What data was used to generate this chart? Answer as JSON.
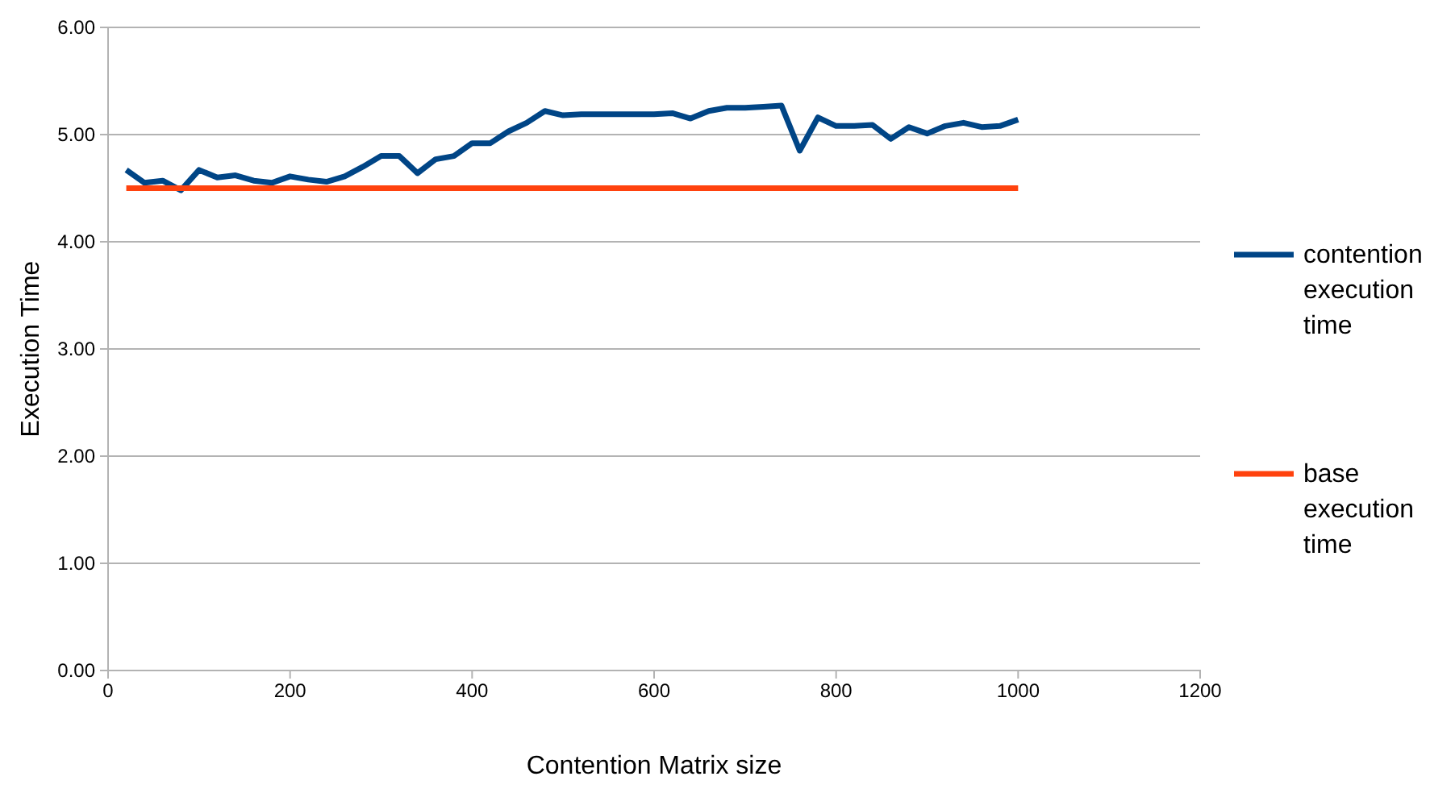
{
  "chart_data": {
    "type": "line",
    "xlabel": "Contention Matrix size",
    "ylabel": "Execution Time",
    "x": [
      20,
      40,
      60,
      80,
      100,
      120,
      140,
      160,
      180,
      200,
      220,
      240,
      260,
      280,
      300,
      320,
      340,
      360,
      380,
      400,
      420,
      440,
      460,
      480,
      500,
      520,
      540,
      560,
      580,
      600,
      620,
      640,
      660,
      680,
      700,
      720,
      740,
      760,
      780,
      800,
      820,
      840,
      860,
      880,
      900,
      920,
      940,
      960,
      980,
      1000
    ],
    "series": [
      {
        "name": "contention execution time",
        "color": "#004586",
        "values": [
          4.67,
          4.55,
          4.57,
          4.48,
          4.67,
          4.6,
          4.62,
          4.57,
          4.55,
          4.61,
          4.58,
          4.56,
          4.61,
          4.7,
          4.8,
          4.8,
          4.64,
          4.77,
          4.8,
          4.92,
          4.92,
          5.03,
          5.11,
          5.22,
          5.18,
          5.19,
          5.19,
          5.19,
          5.19,
          5.19,
          5.2,
          5.15,
          5.22,
          5.25,
          5.25,
          5.26,
          5.27,
          4.85,
          5.16,
          5.08,
          5.08,
          5.09,
          4.96,
          5.07,
          5.01,
          5.08,
          5.11,
          5.07,
          5.08,
          5.14
        ]
      },
      {
        "name": "base execution time",
        "color": "#ff420e",
        "values": [
          4.5,
          4.5,
          4.5,
          4.5,
          4.5,
          4.5,
          4.5,
          4.5,
          4.5,
          4.5,
          4.5,
          4.5,
          4.5,
          4.5,
          4.5,
          4.5,
          4.5,
          4.5,
          4.5,
          4.5,
          4.5,
          4.5,
          4.5,
          4.5,
          4.5,
          4.5,
          4.5,
          4.5,
          4.5,
          4.5,
          4.5,
          4.5,
          4.5,
          4.5,
          4.5,
          4.5,
          4.5,
          4.5,
          4.5,
          4.5,
          4.5,
          4.5,
          4.5,
          4.5,
          4.5,
          4.5,
          4.5,
          4.5,
          4.5,
          4.5
        ]
      }
    ],
    "xlim": [
      0,
      1200
    ],
    "xticks": [
      0,
      200,
      400,
      600,
      800,
      1000,
      1200
    ],
    "ylim": [
      0,
      6
    ],
    "yticks": [
      {
        "value": 0,
        "label": "0.00"
      },
      {
        "value": 1,
        "label": "1.00"
      },
      {
        "value": 2,
        "label": "2.00"
      },
      {
        "value": 3,
        "label": "3.00"
      },
      {
        "value": 4,
        "label": "4.00"
      },
      {
        "value": 5,
        "label": "5.00"
      },
      {
        "value": 6,
        "label": "6.00"
      }
    ],
    "grid": "y",
    "legend": "right",
    "marker": "none",
    "line_style": "solid"
  }
}
